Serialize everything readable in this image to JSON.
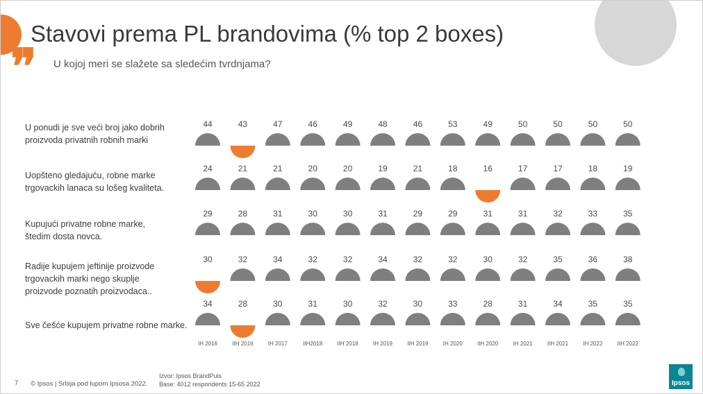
{
  "page": {
    "number": "7"
  },
  "header": {
    "title": "Stavovi prema PL brandovima (% top 2 boxes)",
    "subtitle": "U kojoj meri se slažete sa sledećim tvrdnjama?"
  },
  "footer": {
    "copyright": "© Ipsos | Srbija pod lupom Ipsosa 2022.",
    "source_line1": "Izvor: Ipsos BrandPuls",
    "source_line2": "Base: 4012 respondents 15-65 2022"
  },
  "logo": {
    "text": "Ipsos"
  },
  "colors": {
    "normal": "#7f7f7f",
    "highlight": "#ee7c30",
    "value_text": "#4a4a4a"
  },
  "chart_data": {
    "type": "table",
    "title": "Stavovi prema PL brandovima (% top 2 boxes)",
    "columns": [
      "IH 2016",
      "IIH 2016",
      "IH 2017",
      "IIH2018",
      "IIH 2018",
      "IH 2019",
      "IIH 2019",
      "IH 2020",
      "IIH 2020",
      "IH 2021",
      "IIH 2021",
      "IH 2022",
      "IIH 2022"
    ],
    "rows": [
      {
        "label": "U ponudi je sve veći broj jako dobrih\nproizvoda privatnih robnih marki",
        "values": [
          44,
          43,
          47,
          46,
          49,
          48,
          46,
          53,
          49,
          50,
          50,
          50,
          50
        ],
        "highlighted": [
          false,
          true,
          false,
          false,
          false,
          false,
          false,
          false,
          false,
          false,
          false,
          false,
          false
        ]
      },
      {
        "label": "Uopšteno gledajuću, robne marke\ntrgovackih lanaca su lošeg kvaliteta.",
        "values": [
          24,
          21,
          21,
          20,
          20,
          19,
          21,
          18,
          16,
          17,
          17,
          18,
          19
        ],
        "highlighted": [
          false,
          false,
          false,
          false,
          false,
          false,
          false,
          false,
          true,
          false,
          false,
          false,
          false
        ]
      },
      {
        "label": "Kupujući privatne robne marke,\nštedim dosta novca.",
        "values": [
          29,
          28,
          31,
          30,
          30,
          31,
          29,
          29,
          31,
          31,
          32,
          33,
          35
        ],
        "highlighted": [
          false,
          false,
          false,
          false,
          false,
          false,
          false,
          false,
          false,
          false,
          false,
          false,
          false
        ]
      },
      {
        "label": "Radije kupujem jeftinije proizvode\ntrgovackih marki nego skuplje\nproizvode poznatih proizvodaca..",
        "values": [
          30,
          32,
          34,
          32,
          32,
          34,
          32,
          32,
          30,
          32,
          35,
          36,
          38
        ],
        "highlighted": [
          true,
          false,
          false,
          false,
          false,
          false,
          false,
          false,
          false,
          false,
          false,
          false,
          false
        ]
      },
      {
        "label": "Sve češće kupujem privatne robne marke.",
        "values": [
          34,
          28,
          30,
          31,
          30,
          32,
          30,
          33,
          28,
          31,
          34,
          35,
          35
        ],
        "highlighted": [
          false,
          true,
          false,
          false,
          false,
          false,
          false,
          false,
          false,
          false,
          false,
          false,
          false
        ]
      }
    ]
  }
}
